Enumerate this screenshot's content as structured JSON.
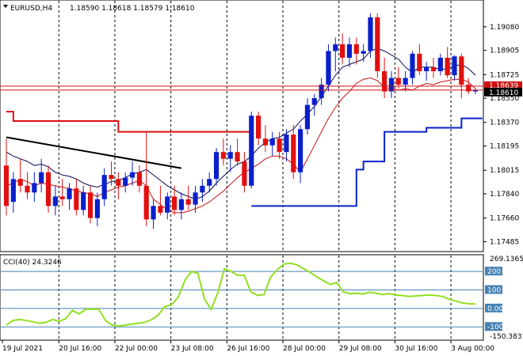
{
  "header": {
    "symbol_label": "EURUSD,H4",
    "ohlc": "1.18590 1.18618 1.18579 1.18610"
  },
  "cci": {
    "label": "CCI(40) 24.3246",
    "levels": [
      "269.1365",
      "200",
      "100",
      "0.00",
      "-100",
      "-150.3831"
    ],
    "level_values": [
      200,
      100,
      0,
      -100
    ],
    "max": 269.1365,
    "min": -150.3831,
    "series": [
      -90,
      -65,
      -60,
      -65,
      -72,
      -80,
      -75,
      -60,
      -70,
      -55,
      -10,
      -30,
      -5,
      -4,
      -5,
      -65,
      -90,
      -95,
      -90,
      -85,
      -80,
      -75,
      -60,
      -35,
      10,
      20,
      60,
      150,
      200,
      190,
      50,
      -5,
      85,
      215,
      200,
      180,
      180,
      90,
      70,
      75,
      170,
      210,
      240,
      245,
      235,
      215,
      195,
      170,
      150,
      130,
      140,
      90,
      80,
      82,
      78,
      88,
      82,
      75,
      80,
      72,
      70,
      65,
      68,
      70,
      73,
      70,
      65,
      50,
      40,
      30,
      25,
      24.3
    ]
  },
  "price_axis": {
    "ticks": [
      "1.19080",
      "1.18905",
      "1.18725",
      "1.18550",
      "1.18370",
      "1.18195",
      "1.18015",
      "1.17840",
      "1.17660",
      "1.17485"
    ],
    "tick_values": [
      1.1908,
      1.18905,
      1.18725,
      1.1855,
      1.1837,
      1.18195,
      1.18015,
      1.1784,
      1.1766,
      1.17485
    ],
    "max": 1.1922,
    "min": 1.1747,
    "current_price_label": "1.18610",
    "ref_price_label": "1.18639",
    "ref_price": 1.18639,
    "current_price": 1.1861
  },
  "time_axis": {
    "labels": [
      "19 Jul 2021",
      "20 Jul 16:00",
      "22 Jul 00:00",
      "23 Jul 08:00",
      "26 Jul 16:00",
      "28 Jul 00:00",
      "29 Jul 08:00",
      "30 Jul 16:00",
      "3 Aug 00:00"
    ]
  },
  "colors": {
    "bull": "#0a1fcc",
    "bear": "#e01010",
    "ma_fast": "#0a0a5a",
    "ma_slow": "#cc1010",
    "cci": "#90e020",
    "ref_line": "#cc1010",
    "bands_upper": "#dd1010",
    "bands_lower": "#0a22cc"
  },
  "chart_data": {
    "type": "candlestick",
    "candles": [
      [
        1.1805,
        1.1825,
        1.1768,
        1.1775
      ],
      [
        1.1778,
        1.18,
        1.177,
        1.1795
      ],
      [
        1.1795,
        1.181,
        1.1785,
        1.179
      ],
      [
        1.179,
        1.18,
        1.178,
        1.1785
      ],
      [
        1.1785,
        1.18,
        1.1778,
        1.1792
      ],
      [
        1.1792,
        1.181,
        1.1785,
        1.18
      ],
      [
        1.18,
        1.1805,
        1.177,
        1.1775
      ],
      [
        1.1775,
        1.179,
        1.1768,
        1.1782
      ],
      [
        1.1782,
        1.1795,
        1.1775,
        1.178
      ],
      [
        1.178,
        1.1792,
        1.1772,
        1.1788
      ],
      [
        1.1788,
        1.1795,
        1.1768,
        1.1772
      ],
      [
        1.1772,
        1.179,
        1.1768,
        1.1785
      ],
      [
        1.1785,
        1.179,
        1.1762,
        1.1766
      ],
      [
        1.1766,
        1.1785,
        1.176,
        1.178
      ],
      [
        1.178,
        1.1803,
        1.1775,
        1.1798
      ],
      [
        1.1798,
        1.1808,
        1.179,
        1.1795
      ],
      [
        1.1795,
        1.18,
        1.178,
        1.179
      ],
      [
        1.179,
        1.18,
        1.1785,
        1.1796
      ],
      [
        1.1796,
        1.1808,
        1.179,
        1.18
      ],
      [
        1.18,
        1.1805,
        1.1785,
        1.179
      ],
      [
        1.179,
        1.183,
        1.176,
        1.1765
      ],
      [
        1.1765,
        1.178,
        1.1758,
        1.1775
      ],
      [
        1.1775,
        1.179,
        1.1768,
        1.177
      ],
      [
        1.177,
        1.1785,
        1.1765,
        1.1782
      ],
      [
        1.1782,
        1.179,
        1.1768,
        1.1772
      ],
      [
        1.1772,
        1.1785,
        1.1765,
        1.178
      ],
      [
        1.178,
        1.179,
        1.1772,
        1.1776
      ],
      [
        1.1776,
        1.179,
        1.177,
        1.1785
      ],
      [
        1.1785,
        1.1795,
        1.1778,
        1.179
      ],
      [
        1.179,
        1.18,
        1.1785,
        1.1795
      ],
      [
        1.1795,
        1.1818,
        1.179,
        1.1815
      ],
      [
        1.1815,
        1.1825,
        1.1805,
        1.181
      ],
      [
        1.181,
        1.182,
        1.18,
        1.1815
      ],
      [
        1.1815,
        1.1825,
        1.1805,
        1.1808
      ],
      [
        1.1808,
        1.1815,
        1.1785,
        1.179
      ],
      [
        1.179,
        1.1845,
        1.1788,
        1.1842
      ],
      [
        1.1842,
        1.1845,
        1.182,
        1.1825
      ],
      [
        1.1825,
        1.1835,
        1.1815,
        1.182
      ],
      [
        1.182,
        1.183,
        1.1812,
        1.1825
      ],
      [
        1.1825,
        1.183,
        1.181,
        1.1815
      ],
      [
        1.1815,
        1.1832,
        1.1808,
        1.1828
      ],
      [
        1.1828,
        1.1835,
        1.1795,
        1.18
      ],
      [
        1.18,
        1.1835,
        1.1792,
        1.1832
      ],
      [
        1.1832,
        1.1855,
        1.1828,
        1.185
      ],
      [
        1.185,
        1.1858,
        1.1842,
        1.1855
      ],
      [
        1.1855,
        1.187,
        1.185,
        1.1865
      ],
      [
        1.1865,
        1.1895,
        1.186,
        1.189
      ],
      [
        1.189,
        1.19,
        1.1875,
        1.1895
      ],
      [
        1.1895,
        1.1903,
        1.188,
        1.1885
      ],
      [
        1.1885,
        1.19,
        1.1878,
        1.1895
      ],
      [
        1.1895,
        1.19,
        1.188,
        1.1888
      ],
      [
        1.1888,
        1.1895,
        1.1882,
        1.189
      ],
      [
        1.189,
        1.1918,
        1.1885,
        1.1915
      ],
      [
        1.1915,
        1.1918,
        1.187,
        1.1875
      ],
      [
        1.1875,
        1.1885,
        1.1855,
        1.186
      ],
      [
        1.186,
        1.1875,
        1.1855,
        1.187
      ],
      [
        1.187,
        1.1878,
        1.1862,
        1.1865
      ],
      [
        1.1865,
        1.1875,
        1.186,
        1.187
      ],
      [
        1.187,
        1.189,
        1.1865,
        1.1888
      ],
      [
        1.1888,
        1.1895,
        1.1872,
        1.1875
      ],
      [
        1.1875,
        1.1882,
        1.1868,
        1.1878
      ],
      [
        1.1878,
        1.1885,
        1.187,
        1.1875
      ],
      [
        1.1875,
        1.1888,
        1.1872,
        1.1885
      ],
      [
        1.1885,
        1.1893,
        1.187,
        1.1872
      ],
      [
        1.1872,
        1.1887,
        1.1868,
        1.1886
      ],
      [
        1.1886,
        1.1888,
        1.1855,
        1.1865
      ],
      [
        1.1865,
        1.187,
        1.1858,
        1.186
      ],
      [
        1.186,
        1.1862,
        1.1858,
        1.1861
      ]
    ],
    "ma_fast": [
      1.1815,
      1.1812,
      1.181,
      1.1808,
      1.1805,
      1.1806,
      1.1804,
      1.18,
      1.1798,
      1.1797,
      1.1795,
      1.1792,
      1.179,
      1.1789,
      1.1791,
      1.1793,
      1.1794,
      1.1796,
      1.1799,
      1.18,
      1.1802,
      1.1798,
      1.1794,
      1.179,
      1.1787,
      1.1784,
      1.1782,
      1.178,
      1.1782,
      1.1786,
      1.1792,
      1.1797,
      1.1802,
      1.1806,
      1.1808,
      1.1812,
      1.1818,
      1.1822,
      1.1825,
      1.1826,
      1.1829,
      1.1832,
      1.1838,
      1.1843,
      1.1849,
      1.1856,
      1.1864,
      1.1872,
      1.1878,
      1.188,
      1.1882,
      1.1884,
      1.189,
      1.1892,
      1.189,
      1.1887,
      1.1884,
      1.1878,
      1.1874,
      1.1878,
      1.1878,
      1.1878,
      1.1876,
      1.1877,
      1.1879,
      1.188,
      1.1877,
      1.1872
    ],
    "ma_slow": [
      1.179,
      1.1792,
      1.1795,
      1.1793,
      1.179,
      1.1792,
      1.1791,
      1.179,
      1.1789,
      1.1788,
      1.1786,
      1.1785,
      1.1784,
      1.1782,
      1.1785,
      1.1787,
      1.1789,
      1.179,
      1.1792,
      1.1794,
      1.179,
      1.178,
      1.1776,
      1.1772,
      1.177,
      1.177,
      1.1771,
      1.1773,
      1.1775,
      1.1778,
      1.1782,
      1.1786,
      1.1791,
      1.1796,
      1.18,
      1.1803,
      1.1806,
      1.181,
      1.1812,
      1.1812,
      1.181,
      1.1806,
      1.18,
      1.181,
      1.182,
      1.183,
      1.184,
      1.1848,
      1.1855,
      1.186,
      1.1866,
      1.1869,
      1.187,
      1.1868,
      1.1863,
      1.1862,
      1.1861,
      1.1862,
      1.1861,
      1.1864,
      1.1866,
      1.1865,
      1.1867,
      1.1868,
      1.1869,
      1.1869,
      1.1867,
      1.1862
    ],
    "upper_band": [
      [
        0,
        1.1845
      ],
      [
        1,
        1.1838
      ],
      [
        2,
        1.1838
      ],
      [
        3,
        1.1838
      ],
      [
        4,
        1.1838
      ],
      [
        5,
        1.1838
      ],
      [
        6,
        1.1838
      ],
      [
        7,
        1.1838
      ],
      [
        8,
        1.1838
      ],
      [
        9,
        1.1838
      ],
      [
        10,
        1.1838
      ],
      [
        11,
        1.1838
      ],
      [
        12,
        1.1838
      ],
      [
        13,
        1.1838
      ],
      [
        14,
        1.1838
      ],
      [
        15,
        1.1838
      ],
      [
        16,
        1.183
      ],
      [
        17,
        1.183
      ],
      [
        18,
        1.183
      ],
      [
        19,
        1.183
      ],
      [
        20,
        1.183
      ],
      [
        21,
        1.183
      ],
      [
        22,
        1.183
      ],
      [
        23,
        1.183
      ],
      [
        24,
        1.183
      ],
      [
        25,
        1.183
      ],
      [
        26,
        1.183
      ],
      [
        27,
        1.183
      ],
      [
        28,
        1.183
      ],
      [
        29,
        1.183
      ],
      [
        30,
        1.183
      ],
      [
        31,
        1.183
      ],
      [
        32,
        1.183
      ],
      [
        33,
        1.183
      ],
      [
        34,
        1.183
      ],
      [
        35,
        1.183
      ]
    ],
    "lower_band": [
      [
        35,
        1.1775
      ],
      [
        36,
        1.1775
      ],
      [
        37,
        1.1775
      ],
      [
        38,
        1.1775
      ],
      [
        39,
        1.1775
      ],
      [
        40,
        1.1775
      ],
      [
        41,
        1.1775
      ],
      [
        42,
        1.1775
      ],
      [
        43,
        1.1775
      ],
      [
        44,
        1.1775
      ],
      [
        45,
        1.1775
      ],
      [
        46,
        1.1775
      ],
      [
        47,
        1.1775
      ],
      [
        48,
        1.1775
      ],
      [
        49,
        1.1775
      ],
      [
        50,
        1.1802
      ],
      [
        51,
        1.1808
      ],
      [
        52,
        1.1808
      ],
      [
        53,
        1.1808
      ],
      [
        54,
        1.183
      ],
      [
        55,
        1.183
      ],
      [
        56,
        1.183
      ],
      [
        57,
        1.183
      ],
      [
        58,
        1.183
      ],
      [
        59,
        1.183
      ],
      [
        60,
        1.1833
      ],
      [
        61,
        1.1833
      ],
      [
        62,
        1.1833
      ],
      [
        63,
        1.1833
      ],
      [
        64,
        1.1833
      ],
      [
        65,
        1.184
      ],
      [
        66,
        1.184
      ],
      [
        67,
        1.184
      ],
      [
        68,
        1.184
      ]
    ],
    "trendline": [
      [
        0,
        1.1826
      ],
      [
        25,
        1.1803
      ]
    ]
  }
}
